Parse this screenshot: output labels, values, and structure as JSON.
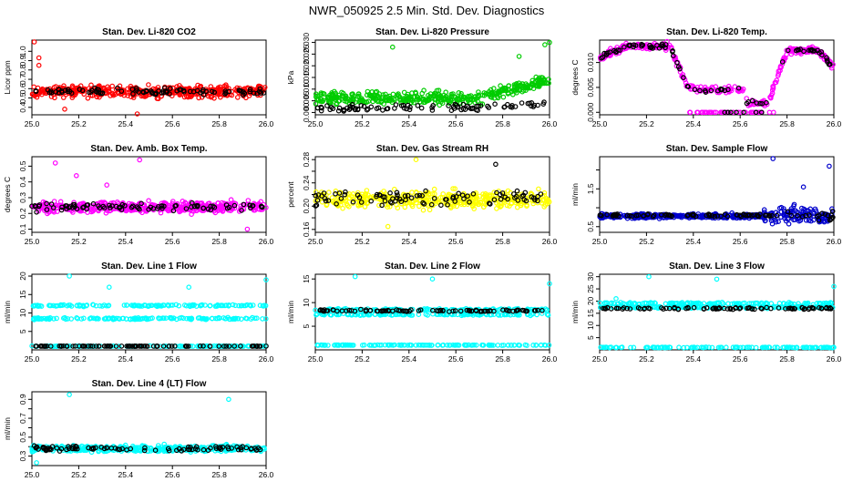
{
  "title": "NWR_050925  2.5 Min. Std. Dev. Diagnostics",
  "chart_data": [
    {
      "type": "scatter",
      "title": "Stan. Dev. Li-820 CO2",
      "ylabel": "Licor ppm",
      "xlim": [
        25.0,
        26.0
      ],
      "ylim": [
        0.32,
        1.12
      ],
      "xticks": [
        25.0,
        25.2,
        25.4,
        25.6,
        25.8,
        26.0
      ],
      "xtick_labels": [
        "25.0",
        "25.2",
        "25.4",
        "25.6",
        "25.8",
        "26.0"
      ],
      "yticks": [
        0.4,
        0.5,
        0.6,
        0.7,
        0.8,
        0.9,
        1.0
      ],
      "ytick_labels": [
        "0.4",
        "0.5",
        "0.6",
        "0.7",
        "0.8",
        "0.9",
        "1.0"
      ],
      "series": [
        {
          "name": "individual",
          "color": "#ff0000",
          "center": 0.57,
          "spread": 0.09,
          "outliers": [
            [
              25.01,
              1.1
            ],
            [
              25.03,
              0.93
            ],
            [
              25.03,
              0.85
            ],
            [
              25.45,
              0.33
            ],
            [
              25.14,
              0.38
            ]
          ]
        },
        {
          "name": "mean",
          "color": "#000000",
          "center": 0.57,
          "spread": 0.05
        }
      ]
    },
    {
      "type": "scatter",
      "title": "Stan. Dev. Li-820 Pressure",
      "ylabel": "kPa",
      "xlim": [
        25.0,
        26.0
      ],
      "ylim": [
        -0.001,
        0.031
      ],
      "xticks": [
        25.0,
        25.2,
        25.4,
        25.6,
        25.8,
        26.0
      ],
      "xtick_labels": [
        "25.0",
        "25.2",
        "25.4",
        "25.6",
        "25.8",
        "26.0"
      ],
      "yticks": [
        0.0,
        0.005,
        0.01,
        0.015,
        0.02,
        0.025,
        0.03
      ],
      "ytick_labels": [
        "0.000",
        "0.005",
        "0.010",
        "0.015",
        "0.020",
        "0.025",
        "0.030"
      ],
      "series": [
        {
          "name": "individual",
          "color": "#00cc00",
          "center": 0.006,
          "spread": 0.004,
          "trend": 0.008,
          "outliers": [
            [
              25.33,
              0.028
            ],
            [
              26.0,
              0.03
            ],
            [
              25.98,
              0.029
            ],
            [
              25.87,
              0.024
            ]
          ]
        },
        {
          "name": "mean",
          "color": "#000000",
          "center": 0.002,
          "spread": 0.002,
          "trend": 0.002
        }
      ]
    },
    {
      "type": "scatter",
      "title": "Stan. Dev. Li-820 Temp.",
      "ylabel": "degrees C",
      "xlim": [
        25.0,
        26.0
      ],
      "ylim": [
        -0.0005,
        0.0145
      ],
      "xticks": [
        25.0,
        25.2,
        25.4,
        25.6,
        25.8,
        26.0
      ],
      "xtick_labels": [
        "25.0",
        "25.2",
        "25.4",
        "25.6",
        "25.8",
        "26.0"
      ],
      "yticks": [
        0.0,
        0.005,
        0.01
      ],
      "ytick_labels": [
        "0.000",
        "0.005",
        "0.010"
      ],
      "series": [
        {
          "name": "individual",
          "color": "#ff00ff",
          "profile": "temp",
          "spread": 0.001
        },
        {
          "name": "mean",
          "color": "#000000",
          "profile": "temp",
          "spread": 0.0006
        }
      ]
    },
    {
      "type": "scatter",
      "title": "Stan. Dev. Amb. Box Temp.",
      "ylabel": "degrees C",
      "xlim": [
        25.0,
        26.0
      ],
      "ylim": [
        0.08,
        0.56
      ],
      "xticks": [
        25.0,
        25.2,
        25.4,
        25.6,
        25.8,
        26.0
      ],
      "xtick_labels": [
        "25.0",
        "25.2",
        "25.4",
        "25.6",
        "25.8",
        "26.0"
      ],
      "yticks": [
        0.1,
        0.2,
        0.3,
        0.4,
        0.5
      ],
      "ytick_labels": [
        "0.1",
        "0.2",
        "0.3",
        "0.4",
        "0.5"
      ],
      "series": [
        {
          "name": "individual",
          "color": "#ff00ff",
          "center": 0.24,
          "spread": 0.05,
          "outliers": [
            [
              25.1,
              0.52
            ],
            [
              25.46,
              0.54
            ],
            [
              25.19,
              0.44
            ],
            [
              25.32,
              0.38
            ],
            [
              25.92,
              0.1
            ]
          ]
        },
        {
          "name": "mean",
          "color": "#000000",
          "center": 0.24,
          "spread": 0.035
        }
      ]
    },
    {
      "type": "scatter",
      "title": "Stan. Dev. Gas Stream RH",
      "ylabel": "percent",
      "xlim": [
        25.0,
        26.0
      ],
      "ylim": [
        0.155,
        0.285
      ],
      "xticks": [
        25.0,
        25.2,
        25.4,
        25.6,
        25.8,
        26.0
      ],
      "xtick_labels": [
        "25.0",
        "25.2",
        "25.4",
        "25.6",
        "25.8",
        "26.0"
      ],
      "yticks": [
        0.16,
        0.18,
        0.2,
        0.22,
        0.24,
        0.26,
        0.28
      ],
      "ytick_labels": [
        "0.16",
        "",
        "0.20",
        "",
        "0.24",
        "",
        "0.28"
      ],
      "series": [
        {
          "name": "individual",
          "color": "#ffff00",
          "center": 0.212,
          "spread": 0.022,
          "outliers": [
            [
              25.43,
              0.28
            ],
            [
              25.31,
              0.165
            ]
          ]
        },
        {
          "name": "mean",
          "color": "#000000",
          "center": 0.214,
          "spread": 0.02,
          "outliers": [
            [
              25.77,
              0.272
            ]
          ]
        }
      ]
    },
    {
      "type": "scatter",
      "title": "Stan. Dev. Sample Flow",
      "ylabel": "ml/min",
      "xlim": [
        25.0,
        26.0
      ],
      "ylim": [
        0.35,
        2.35
      ],
      "xticks": [
        25.0,
        25.2,
        25.4,
        25.6,
        25.8,
        26.0
      ],
      "xtick_labels": [
        "25.0",
        "25.2",
        "25.4",
        "25.6",
        "25.8",
        "26.0"
      ],
      "yticks": [
        0.5,
        1.0,
        1.5,
        2.0
      ],
      "ytick_labels": [
        "0.5",
        "",
        "1.5",
        ""
      ],
      "series": [
        {
          "name": "individual",
          "color": "#0000cc",
          "center": 0.78,
          "spread": 0.09,
          "widen_after": 25.7,
          "wide_spread": 0.35,
          "outliers": [
            [
              25.74,
              2.3
            ],
            [
              25.98,
              2.1
            ],
            [
              25.87,
              1.55
            ]
          ]
        },
        {
          "name": "mean",
          "color": "#000000",
          "center": 0.8,
          "spread": 0.05,
          "widen_after": 25.8,
          "wide_spread": 0.15
        }
      ]
    },
    {
      "type": "scatter",
      "title": "Stan. Dev. Line 1 Flow",
      "ylabel": "ml/min",
      "xlim": [
        25.0,
        26.0
      ],
      "ylim": [
        0,
        20.5
      ],
      "xticks": [
        25.0,
        25.2,
        25.4,
        25.6,
        25.8,
        26.0
      ],
      "xtick_labels": [
        "25.0",
        "25.2",
        "25.4",
        "25.6",
        "25.8",
        "26.0"
      ],
      "yticks": [
        5,
        10,
        15,
        20
      ],
      "ytick_labels": [
        "5",
        "10",
        "15",
        "20"
      ],
      "series": [
        {
          "name": "individual",
          "color": "#00ffff",
          "bands": [
            12,
            8.5,
            1
          ],
          "spread": 0.35,
          "outliers": [
            [
              25.16,
              20
            ],
            [
              26.0,
              19
            ],
            [
              25.33,
              17
            ],
            [
              25.67,
              17
            ]
          ]
        },
        {
          "name": "mean",
          "color": "#000000",
          "bands": [
            1
          ],
          "spread": 0.2
        }
      ]
    },
    {
      "type": "scatter",
      "title": "Stan. Dev. Line 2 Flow",
      "ylabel": "ml/min",
      "xlim": [
        25.0,
        26.0
      ],
      "ylim": [
        0,
        16
      ],
      "xticks": [
        25.0,
        25.2,
        25.4,
        25.6,
        25.8,
        26.0
      ],
      "xtick_labels": [
        "25.0",
        "25.2",
        "25.4",
        "25.6",
        "25.8",
        "26.0"
      ],
      "yticks": [
        5,
        10,
        15
      ],
      "ytick_labels": [
        "5",
        "10",
        "15"
      ],
      "series": [
        {
          "name": "individual",
          "color": "#00ffff",
          "bands": [
            8.5,
            7.5,
            1
          ],
          "spread": 0.3,
          "outliers": [
            [
              25.17,
              15.5
            ],
            [
              26.0,
              14
            ],
            [
              25.5,
              15
            ]
          ]
        },
        {
          "name": "mean",
          "color": "#000000",
          "bands": [
            8.3
          ],
          "spread": 0.3
        }
      ]
    },
    {
      "type": "scatter",
      "title": "Stan. Dev. Line 3 Flow",
      "ylabel": "ml/min",
      "xlim": [
        25.0,
        26.0
      ],
      "ylim": [
        0,
        31
      ],
      "xticks": [
        25.0,
        25.2,
        25.4,
        25.6,
        25.8,
        26.0
      ],
      "xtick_labels": [
        "25.0",
        "25.2",
        "25.4",
        "25.6",
        "25.8",
        "26.0"
      ],
      "yticks": [
        5,
        10,
        15,
        20,
        25,
        30
      ],
      "ytick_labels": [
        "5",
        "10",
        "15",
        "20",
        "25",
        "30"
      ],
      "series": [
        {
          "name": "individual",
          "color": "#00ffff",
          "bands": [
            19,
            17.5,
            1
          ],
          "spread": 0.6,
          "outliers": [
            [
              25.07,
              21
            ],
            [
              25.21,
              30
            ],
            [
              25.5,
              29
            ],
            [
              26.0,
              26
            ]
          ]
        },
        {
          "name": "mean",
          "color": "#000000",
          "bands": [
            17
          ],
          "spread": 0.6
        }
      ]
    },
    {
      "type": "scatter",
      "title": "Stan. Dev. Line 4 (LT) Flow",
      "ylabel": "ml/min",
      "xlim": [
        25.0,
        26.0
      ],
      "ylim": [
        0.2,
        0.98
      ],
      "xticks": [
        25.0,
        25.2,
        25.4,
        25.6,
        25.8,
        26.0
      ],
      "xtick_labels": [
        "25.0",
        "25.2",
        "25.4",
        "25.6",
        "25.8",
        "26.0"
      ],
      "yticks": [
        0.3,
        0.4,
        0.5,
        0.6,
        0.7,
        0.8,
        0.9
      ],
      "ytick_labels": [
        "0.3",
        "",
        "0.5",
        "",
        "0.7",
        "",
        "0.9"
      ],
      "series": [
        {
          "name": "individual",
          "color": "#00ffff",
          "center": 0.38,
          "spread": 0.05,
          "outliers": [
            [
              25.16,
              0.95
            ],
            [
              25.84,
              0.9
            ],
            [
              25.02,
              0.23
            ]
          ]
        },
        {
          "name": "mean",
          "color": "#000000",
          "center": 0.38,
          "spread": 0.04
        }
      ]
    }
  ]
}
